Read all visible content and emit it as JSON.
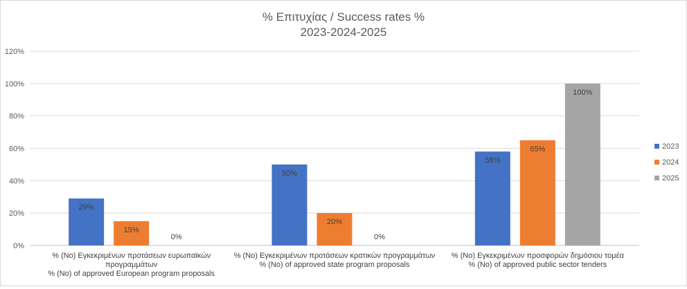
{
  "chart_data": {
    "type": "bar",
    "title_lines": [
      "% Επιτυχίας / Success rates %",
      "2023-2024-2025"
    ],
    "categories": [
      [
        "% (No) Εγκεκριμένων προτάσεων ευρωπαϊκών",
        "προγραμμάτων",
        "% (No) of approved European program proposals"
      ],
      [
        "% (No) Εγκεκριμένων προτάσεων κρατικών προγραμμάτων",
        "% (No) of approved state program proposals"
      ],
      [
        "% (No) Εγκεκριμένων προσφορών δημόσιου τομέα",
        "% (No) of approved public sector tenders"
      ]
    ],
    "series": [
      {
        "name": "2023",
        "color": "#4472c4",
        "values": [
          29,
          50,
          58
        ],
        "labels": [
          "29%",
          "50%",
          "58%"
        ]
      },
      {
        "name": "2024",
        "color": "#ed7d31",
        "values": [
          15,
          20,
          65
        ],
        "labels": [
          "15%",
          "20%",
          "65%"
        ]
      },
      {
        "name": "2025",
        "color": "#a5a5a5",
        "values": [
          0,
          0,
          100
        ],
        "labels": [
          "0%",
          "0%",
          "100%"
        ]
      }
    ],
    "ylim": [
      0,
      120
    ],
    "yticks": [
      0,
      20,
      40,
      60,
      80,
      100,
      120
    ],
    "ytick_labels": [
      "0%",
      "20%",
      "40%",
      "60%",
      "80%",
      "100%",
      "120%"
    ],
    "grid": true,
    "legend_position": "right"
  }
}
